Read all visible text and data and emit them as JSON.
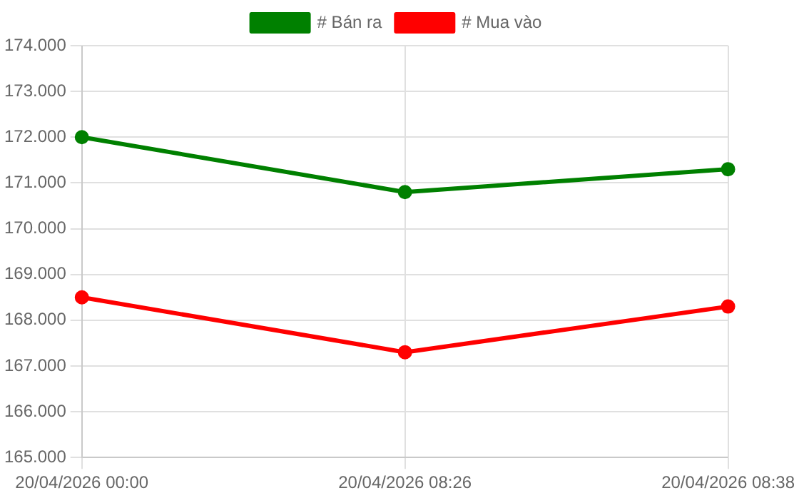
{
  "chart_data": {
    "type": "line",
    "categories": [
      "20/04/2026 00:00",
      "20/04/2026 08:26",
      "20/04/2026 08:38"
    ],
    "series": [
      {
        "name": "# Bán ra",
        "color": "#008000",
        "values": [
          172000,
          170800,
          171300
        ]
      },
      {
        "name": "# Mua vào",
        "color": "#ff0000",
        "values": [
          168500,
          167300,
          168300
        ]
      }
    ],
    "ylim": [
      165000,
      174000
    ],
    "yticks": [
      {
        "value": 165000,
        "label": "165.000"
      },
      {
        "value": 166000,
        "label": "166.000"
      },
      {
        "value": 167000,
        "label": "167.000"
      },
      {
        "value": 168000,
        "label": "168.000"
      },
      {
        "value": 169000,
        "label": "169.000"
      },
      {
        "value": 170000,
        "label": "170.000"
      },
      {
        "value": 171000,
        "label": "171.000"
      },
      {
        "value": 172000,
        "label": "172.000"
      },
      {
        "value": 173000,
        "label": "173.000"
      },
      {
        "value": 174000,
        "label": "174.000"
      }
    ],
    "grid": true,
    "legend": "top",
    "marker": "circle",
    "line_style": "solid"
  }
}
